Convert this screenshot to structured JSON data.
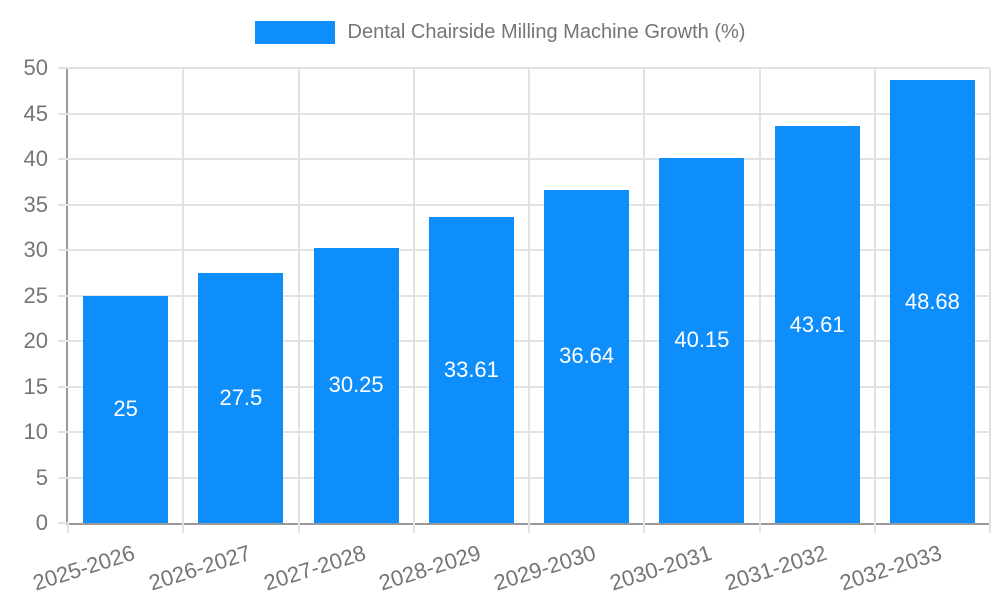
{
  "chart_data": {
    "type": "bar",
    "title": "Dental Chairside Milling Machine Growth (%)",
    "categories": [
      "2025-2026",
      "2026-2027",
      "2027-2028",
      "2028-2029",
      "2029-2030",
      "2030-2031",
      "2031-2032",
      "2032-2033"
    ],
    "values": [
      25,
      27.5,
      30.25,
      33.61,
      36.64,
      40.15,
      43.61,
      48.68
    ],
    "value_labels": [
      "25",
      "27.5",
      "30.25",
      "33.61",
      "36.64",
      "40.15",
      "43.61",
      "48.68"
    ],
    "xlabel": "",
    "ylabel": "",
    "ylim": [
      0,
      50
    ],
    "ytick_step": 5,
    "yticks": [
      0,
      5,
      10,
      15,
      20,
      25,
      30,
      35,
      40,
      45,
      50
    ],
    "grid": true,
    "legend_position": "top-center",
    "x_tick_rotation_deg": -17.5,
    "colors": {
      "bar": "#0d8efa",
      "bar_value_label": "#ffffff",
      "tick_text": "#757575",
      "legend_text": "#757575",
      "grid": "#e2e2e2",
      "axis_line": "#999999",
      "background": "#ffffff"
    }
  }
}
